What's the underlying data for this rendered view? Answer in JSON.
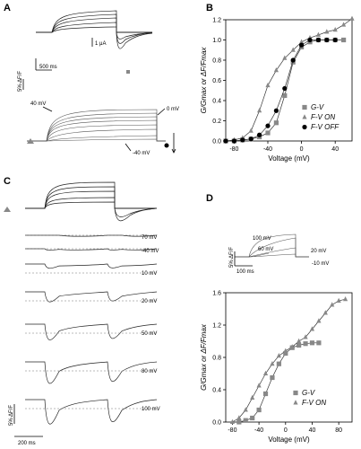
{
  "panels": {
    "A": {
      "label": "A",
      "scale_current": "1 μA",
      "scale_time": "500 ms",
      "scale_fluor": "5% ΔF/F",
      "voltage_labels": [
        "40 mV",
        "0 mV",
        "-40 mV"
      ]
    },
    "B": {
      "label": "B"
    },
    "C": {
      "label": "C",
      "trace_labels": [
        "70 mV",
        "-40 mV",
        "10 mV",
        "20 mV",
        "50 mV",
        "80 mV",
        "100 mV"
      ],
      "scale_fluor": "5% ΔF/F",
      "scale_time": "200 ms"
    },
    "D": {
      "label": "D",
      "inset_labels": [
        "100 mV",
        "60 mV",
        "20 mV",
        "-10 mV"
      ],
      "inset_scale_fluor": "5% ΔF/F",
      "inset_scale_time": "100 ms"
    }
  },
  "chart_data": [
    {
      "panel": "B",
      "type": "scatter",
      "title": "",
      "xlabel": "Voltage (mV)",
      "ylabel": "G/Gmax or ΔF/Fmax",
      "xlim": [
        -90,
        60
      ],
      "ylim": [
        0,
        1.2
      ],
      "xticks": [
        "-80",
        "-40",
        "0",
        "40"
      ],
      "yticks": [
        "0.0",
        "0.2",
        "0.4",
        "0.6",
        "0.8",
        "1.0",
        "1.2"
      ],
      "legend_position": "bottom-right",
      "series": [
        {
          "name": "G-V",
          "marker": "square",
          "color": "#888888",
          "x": [
            -90,
            -80,
            -70,
            -60,
            -50,
            -40,
            -30,
            -20,
            -10,
            0,
            10,
            20,
            30,
            40,
            50
          ],
          "y": [
            0.0,
            0.0,
            0.01,
            0.02,
            0.04,
            0.08,
            0.18,
            0.45,
            0.78,
            0.93,
            0.98,
            1.0,
            1.0,
            1.0,
            1.0
          ]
        },
        {
          "name": "F-V ON",
          "marker": "triangle",
          "color": "#888888",
          "x": [
            -90,
            -80,
            -70,
            -60,
            -50,
            -40,
            -30,
            -20,
            -10,
            0,
            10,
            20,
            30,
            40,
            50,
            60
          ],
          "y": [
            0.0,
            0.01,
            0.03,
            0.1,
            0.3,
            0.55,
            0.7,
            0.82,
            0.9,
            0.98,
            1.02,
            1.05,
            1.08,
            1.1,
            1.15,
            1.21
          ]
        },
        {
          "name": "F-V OFF",
          "marker": "circle",
          "color": "#000000",
          "x": [
            -90,
            -80,
            -70,
            -60,
            -50,
            -40,
            -30,
            -20,
            -10,
            0,
            10,
            20,
            30,
            40
          ],
          "y": [
            0.0,
            0.0,
            0.01,
            0.02,
            0.06,
            0.15,
            0.3,
            0.52,
            0.8,
            0.95,
            1.0,
            1.0,
            1.0,
            1.0
          ]
        }
      ]
    },
    {
      "panel": "D",
      "type": "scatter",
      "title": "",
      "xlabel": "Voltage (mV)",
      "ylabel": "G/Gmax or ΔF/Fmax",
      "xlim": [
        -90,
        100
      ],
      "ylim": [
        0,
        1.6
      ],
      "xticks": [
        "-80",
        "-40",
        "0",
        "40",
        "80"
      ],
      "yticks": [
        "0.0",
        "0.4",
        "0.8",
        "1.2",
        "1.6"
      ],
      "legend_position": "bottom-right",
      "series": [
        {
          "name": "G-V",
          "marker": "square",
          "color": "#888888",
          "x": [
            -70,
            -60,
            -50,
            -40,
            -30,
            -20,
            -10,
            0,
            10,
            20,
            30,
            40,
            50
          ],
          "y": [
            0.0,
            0.02,
            0.05,
            0.15,
            0.35,
            0.55,
            0.72,
            0.85,
            0.92,
            0.95,
            0.97,
            0.98,
            0.98
          ]
        },
        {
          "name": "F-V ON",
          "marker": "triangle",
          "color": "#888888",
          "x": [
            -80,
            -70,
            -60,
            -50,
            -40,
            -30,
            -20,
            -10,
            0,
            10,
            20,
            30,
            40,
            50,
            60,
            70,
            80,
            90
          ],
          "y": [
            0.0,
            0.05,
            0.15,
            0.3,
            0.45,
            0.6,
            0.72,
            0.82,
            0.88,
            0.93,
            1.0,
            1.05,
            1.15,
            1.25,
            1.35,
            1.45,
            1.5,
            1.52
          ]
        }
      ]
    }
  ]
}
